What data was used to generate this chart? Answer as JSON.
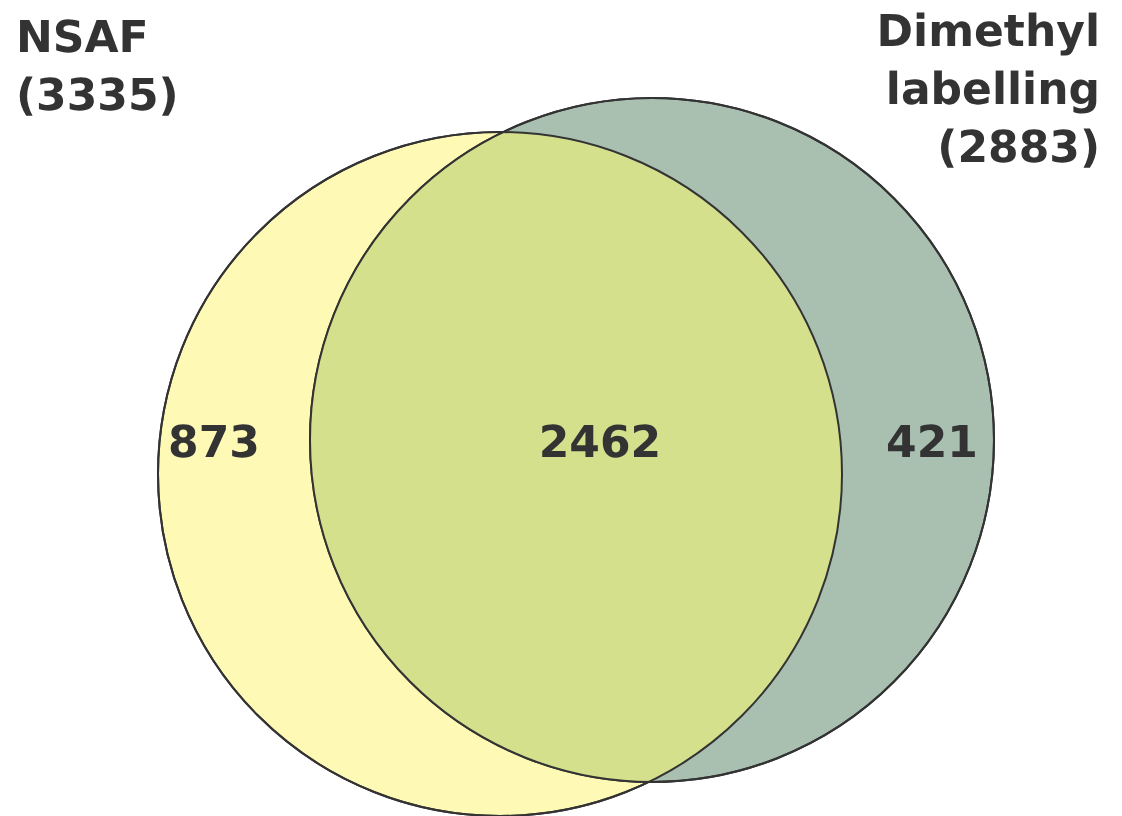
{
  "chart_data": {
    "type": "other",
    "categories": [
      null,
      null,
      null
    ],
    "values": [
      873,
      2462,
      421
    ],
    "colors": [
      "#fef9b4",
      "#d5e08d",
      "#a9c0b1"
    ],
    "data_labels": true,
    "annotations": [
      "NSAF\n(3335)",
      "Dimethyl\nlabelling\n(2883)"
    ]
  }
}
